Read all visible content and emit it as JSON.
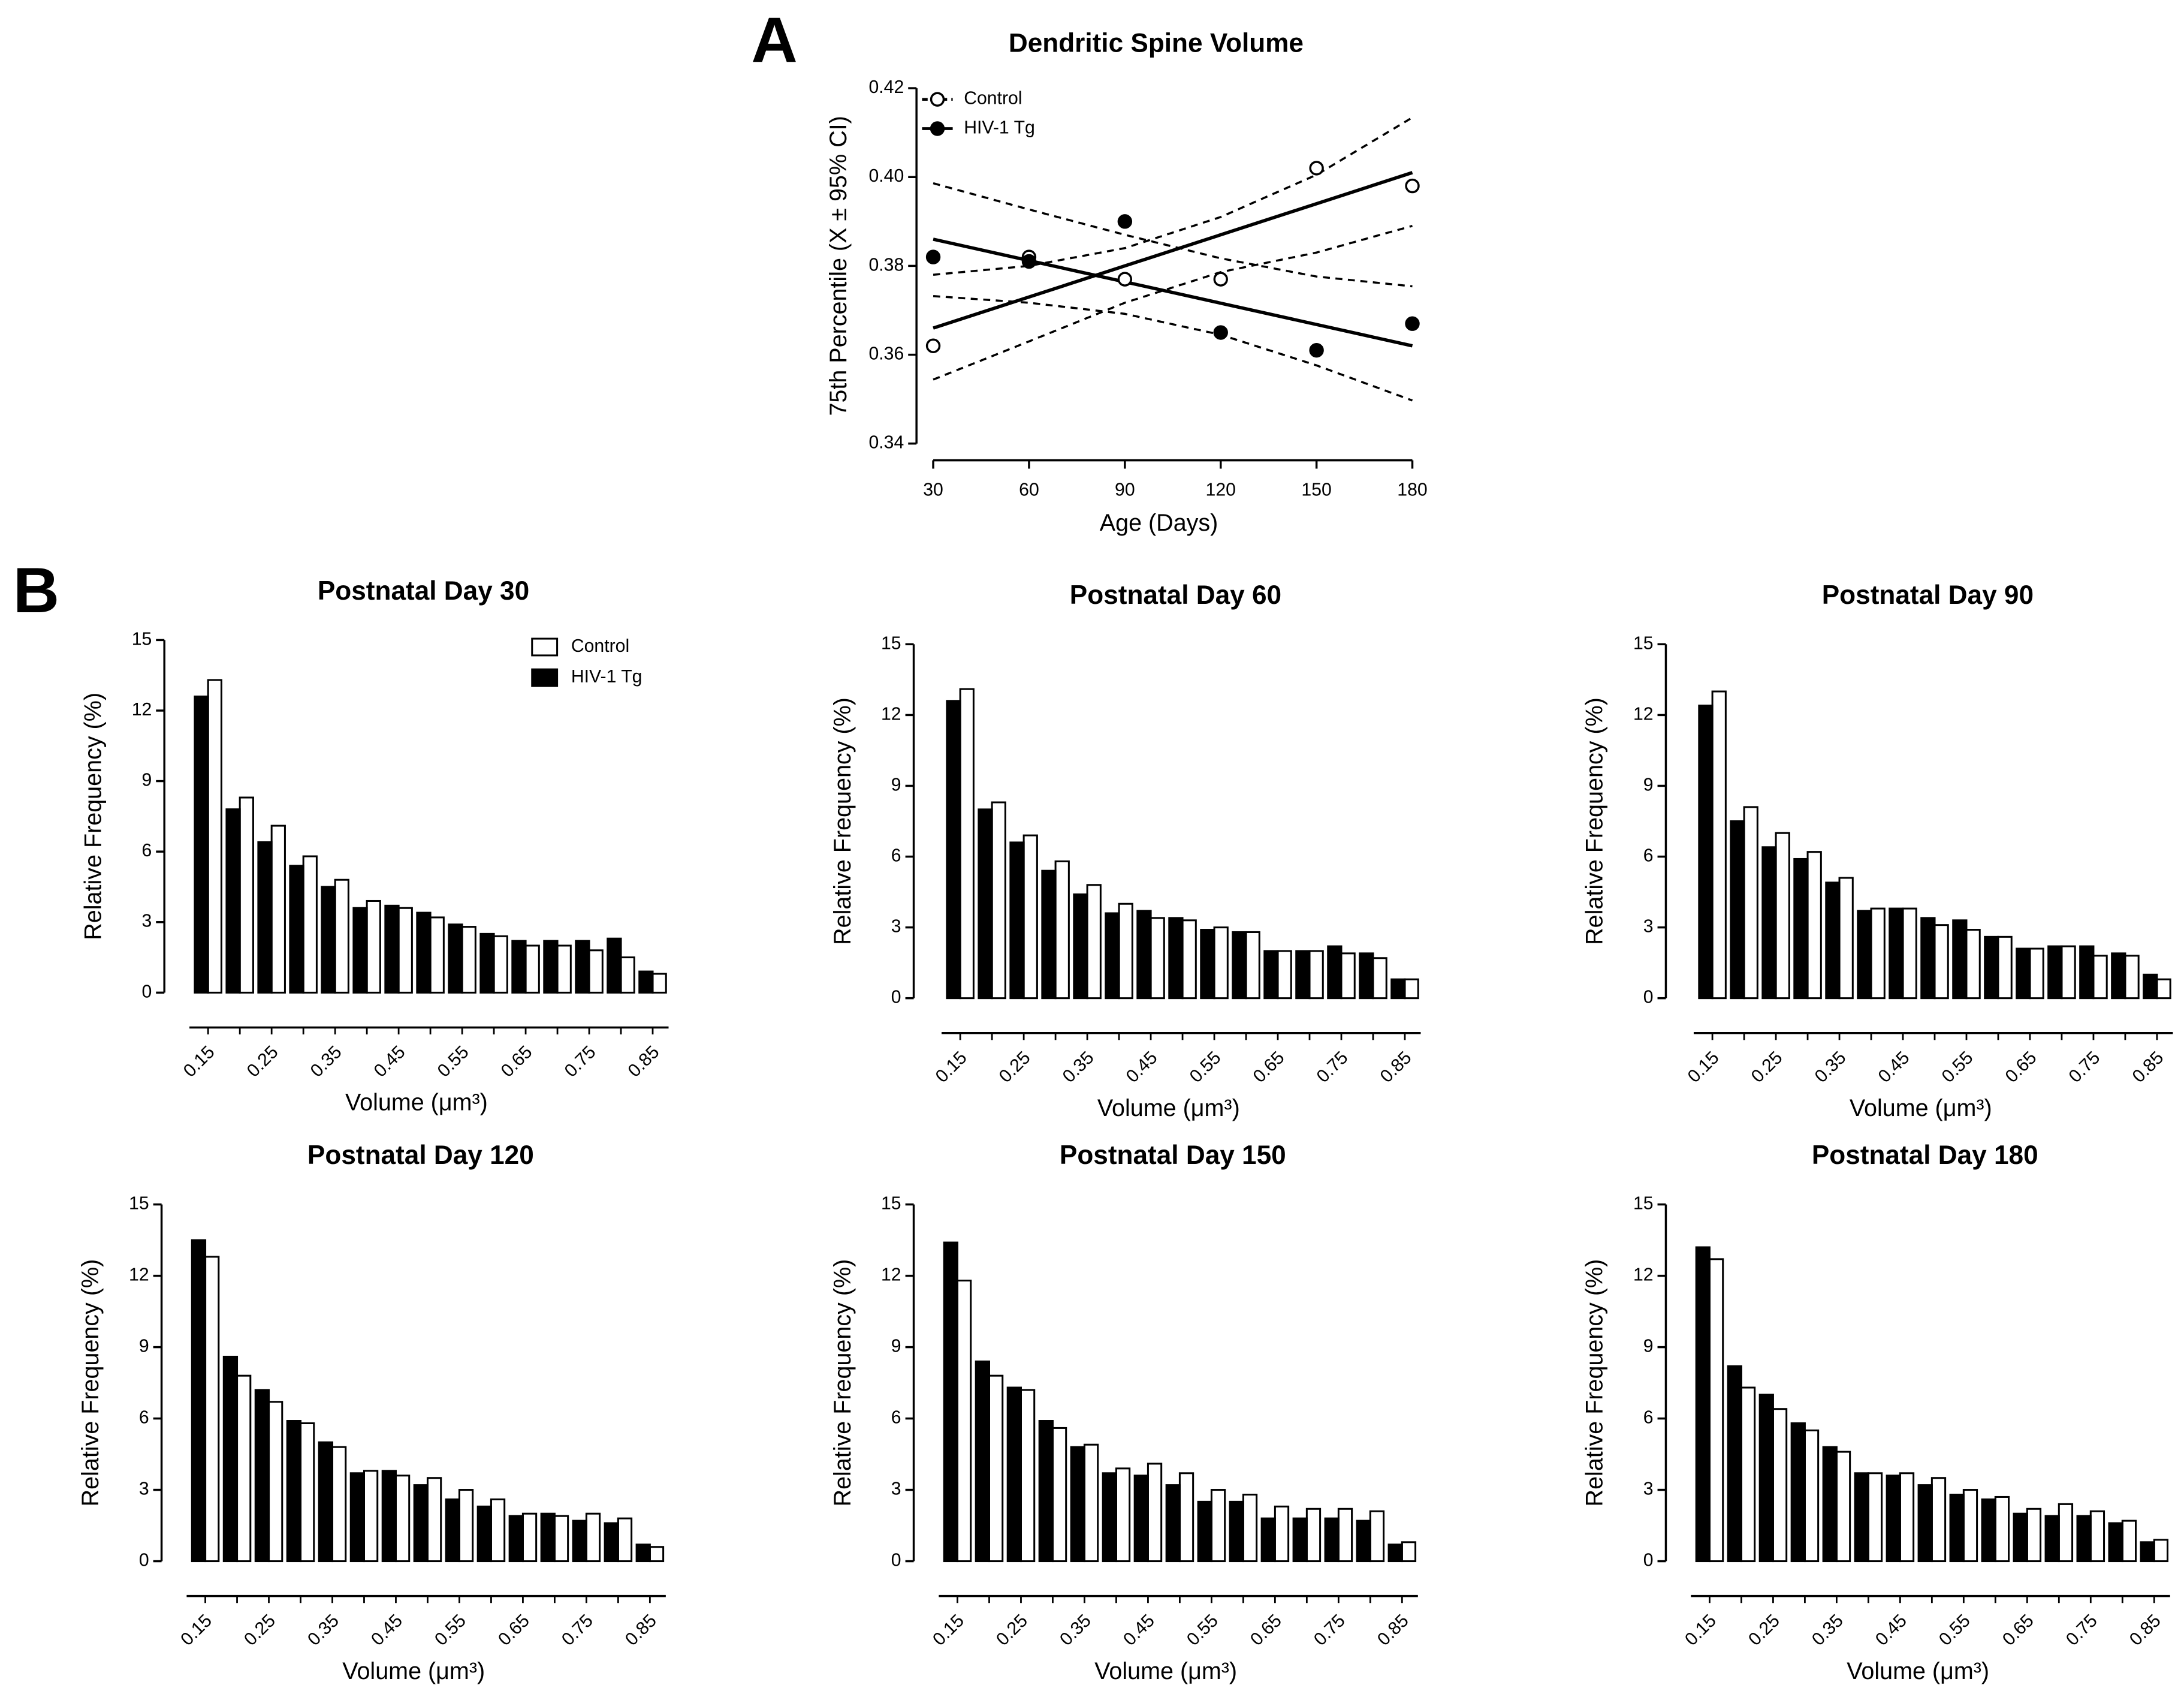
{
  "panel_labels": [
    "A",
    "B"
  ],
  "chart_data": [
    {
      "type": "line",
      "title": "Dendritic Spine Volume",
      "x_label": "Age (Days)",
      "y_label": "75th Percentile (X ± 95% CI)",
      "x": [
        30,
        60,
        90,
        120,
        150,
        180
      ],
      "xlim": [
        30,
        180
      ],
      "xticks": [
        30,
        60,
        90,
        120,
        150,
        180
      ],
      "ylim": [
        0.34,
        0.42
      ],
      "yticks": [
        0.34,
        0.36,
        0.38,
        {
          "value": 0.4,
          "label": "0.40"
        },
        0.42
      ],
      "legend": "upper left",
      "series": [
        {
          "name": "Control",
          "color": "#000000",
          "marker_fill": "#ffffff",
          "values": [
            0.362,
            0.382,
            0.377,
            0.377,
            0.402,
            0.398
          ]
        },
        {
          "name": "HIV-1 Tg",
          "color": "#000000",
          "marker_fill": "#000000",
          "values": [
            0.382,
            0.381,
            0.39,
            0.365,
            0.361,
            0.367
          ]
        }
      ],
      "fits": [
        {
          "x": [
            30,
            180
          ],
          "values": [
            0.366,
            0.401
          ]
        },
        {
          "x": [
            30,
            180
          ],
          "values": [
            0.386,
            0.362
          ]
        }
      ],
      "ci_lines": [
        {
          "values": [
            0.378,
            0.38,
            0.384,
            0.391,
            0.4005,
            0.4134
          ]
        },
        {
          "values": [
            0.3544,
            0.363,
            0.3717,
            0.3786,
            0.383,
            0.389
          ]
        },
        {
          "values": [
            0.3986,
            0.3927,
            0.387,
            0.3817,
            0.3776,
            0.3754
          ]
        },
        {
          "values": [
            0.3732,
            0.3717,
            0.3692,
            0.3645,
            0.3576,
            0.3497
          ]
        }
      ]
    },
    {
      "type": "bar",
      "title": "Postnatal Day 30",
      "x_label": "Volume (μm³)",
      "y_label": "Relative Frequency (%)",
      "categories": [
        "0.15",
        null,
        "0.25",
        null,
        "0.35",
        null,
        "0.45",
        null,
        "0.55",
        null,
        "0.65",
        null,
        "0.75",
        null,
        "0.85"
      ],
      "ylim": [
        0,
        15
      ],
      "yticks": [
        0,
        3,
        6,
        9,
        12,
        15
      ],
      "legend": "upper right",
      "series": [
        {
          "name": "Control",
          "color": "#ffffff",
          "values": [
            13.3,
            8.3,
            7.1,
            5.8,
            4.8,
            3.9,
            3.6,
            3.2,
            2.8,
            2.4,
            2.0,
            2.0,
            1.8,
            1.5,
            0.8
          ]
        },
        {
          "name": "HIV-1 Tg",
          "color": "#000000",
          "values": [
            12.6,
            7.8,
            6.4,
            5.4,
            4.5,
            3.6,
            3.7,
            3.4,
            2.9,
            2.5,
            2.2,
            2.2,
            2.2,
            2.3,
            0.9
          ]
        }
      ]
    },
    {
      "type": "bar",
      "title": "Postnatal Day 60",
      "x_label": "Volume (μm³)",
      "y_label": "Relative Frequency (%)",
      "categories": [
        "0.15",
        null,
        "0.25",
        null,
        "0.35",
        null,
        "0.45",
        null,
        "0.55",
        null,
        "0.65",
        null,
        "0.75",
        null,
        "0.85"
      ],
      "ylim": [
        0,
        15
      ],
      "yticks": [
        0,
        3,
        6,
        9,
        12,
        15
      ],
      "series": [
        {
          "color": "#ffffff",
          "values": [
            13.1,
            8.3,
            6.9,
            5.8,
            4.8,
            4.0,
            3.4,
            3.3,
            3.0,
            2.8,
            2.0,
            2.0,
            1.9,
            1.7,
            0.8
          ]
        },
        {
          "color": "#000000",
          "values": [
            12.6,
            8.0,
            6.6,
            5.4,
            4.4,
            3.6,
            3.7,
            3.4,
            2.9,
            2.8,
            2.0,
            2.0,
            2.2,
            1.9,
            0.8
          ]
        }
      ]
    },
    {
      "type": "bar",
      "title": "Postnatal Day 90",
      "x_label": "Volume (μm³)",
      "y_label": "Relative Frequency (%)",
      "categories": [
        "0.15",
        null,
        "0.25",
        null,
        "0.35",
        null,
        "0.45",
        null,
        "0.55",
        null,
        "0.65",
        null,
        "0.75",
        null,
        "0.85"
      ],
      "ylim": [
        0,
        15
      ],
      "yticks": [
        0,
        3,
        6,
        9,
        12,
        15
      ],
      "series": [
        {
          "color": "#ffffff",
          "values": [
            13.0,
            8.1,
            7.0,
            6.2,
            5.1,
            3.8,
            3.8,
            3.1,
            2.9,
            2.6,
            2.1,
            2.2,
            1.8,
            1.8,
            0.8
          ]
        },
        {
          "color": "#000000",
          "values": [
            12.4,
            7.5,
            6.4,
            5.9,
            4.9,
            3.7,
            3.8,
            3.4,
            3.3,
            2.6,
            2.1,
            2.2,
            2.2,
            1.9,
            1.0
          ]
        }
      ]
    },
    {
      "type": "bar",
      "title": "Postnatal Day 120",
      "x_label": "Volume (μm³)",
      "y_label": "Relative Frequency (%)",
      "categories": [
        "0.15",
        null,
        "0.25",
        null,
        "0.35",
        null,
        "0.45",
        null,
        "0.55",
        null,
        "0.65",
        null,
        "0.75",
        null,
        "0.85"
      ],
      "ylim": [
        0,
        15
      ],
      "yticks": [
        0,
        3,
        6,
        9,
        12,
        15
      ],
      "series": [
        {
          "color": "#ffffff",
          "values": [
            12.8,
            7.8,
            6.7,
            5.8,
            4.8,
            3.8,
            3.6,
            3.5,
            3.0,
            2.6,
            2.0,
            1.9,
            2.0,
            1.8,
            0.6
          ]
        },
        {
          "color": "#000000",
          "values": [
            13.5,
            8.6,
            7.2,
            5.9,
            5.0,
            3.7,
            3.8,
            3.2,
            2.6,
            2.3,
            1.9,
            2.0,
            1.7,
            1.6,
            0.7
          ]
        }
      ]
    },
    {
      "type": "bar",
      "title": "Postnatal Day 150",
      "x_label": "Volume (μm³)",
      "y_label": "Relative Frequency (%)",
      "categories": [
        "0.15",
        null,
        "0.25",
        null,
        "0.35",
        null,
        "0.45",
        null,
        "0.55",
        null,
        "0.65",
        null,
        "0.75",
        null,
        "0.85"
      ],
      "ylim": [
        0,
        15
      ],
      "yticks": [
        0,
        3,
        6,
        9,
        12,
        15
      ],
      "series": [
        {
          "color": "#ffffff",
          "values": [
            11.8,
            7.8,
            7.2,
            5.6,
            4.9,
            3.9,
            4.1,
            3.7,
            3.0,
            2.8,
            2.3,
            2.2,
            2.2,
            2.1,
            0.8
          ]
        },
        {
          "color": "#000000",
          "values": [
            13.4,
            8.4,
            7.3,
            5.9,
            4.8,
            3.7,
            3.6,
            3.2,
            2.5,
            2.5,
            1.8,
            1.8,
            1.8,
            1.7,
            0.7
          ]
        }
      ]
    },
    {
      "type": "bar",
      "title": "Postnatal Day 180",
      "x_label": "Volume (μm³)",
      "y_label": "Relative Frequency (%)",
      "categories": [
        "0.15",
        null,
        "0.25",
        null,
        "0.35",
        null,
        "0.45",
        null,
        "0.55",
        null,
        "0.65",
        null,
        "0.75",
        null,
        "0.85"
      ],
      "ylim": [
        0,
        15
      ],
      "yticks": [
        0,
        3,
        6,
        9,
        12,
        15
      ],
      "series": [
        {
          "color": "#ffffff",
          "values": [
            12.7,
            7.3,
            6.4,
            5.5,
            4.6,
            3.7,
            3.7,
            3.5,
            3.0,
            2.7,
            2.2,
            2.4,
            2.1,
            1.7,
            0.9
          ]
        },
        {
          "color": "#000000",
          "values": [
            13.2,
            8.2,
            7.0,
            5.8,
            4.8,
            3.7,
            3.6,
            3.2,
            2.8,
            2.6,
            2.0,
            1.9,
            1.9,
            1.6,
            0.8
          ]
        }
      ]
    }
  ]
}
